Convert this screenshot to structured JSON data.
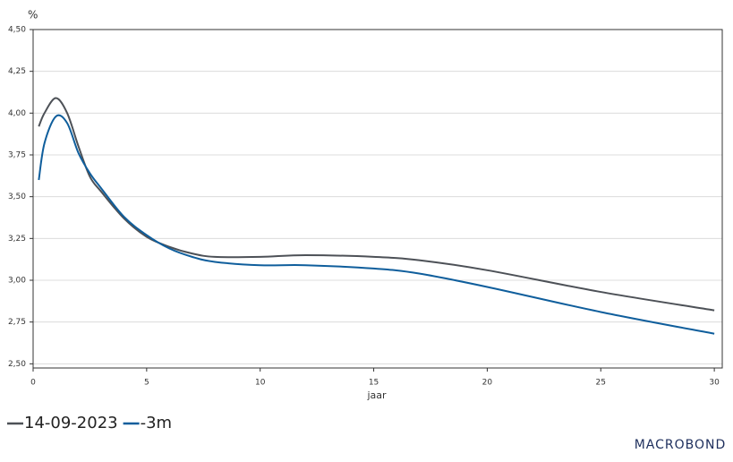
{
  "chart_data": {
    "type": "line",
    "y_unit": "%",
    "x_label": "jaar",
    "x": [
      0.25,
      0.5,
      1,
      1.5,
      2,
      2.5,
      3,
      4,
      5,
      6,
      7,
      8,
      10,
      12,
      15,
      17,
      20,
      25,
      30
    ],
    "series": [
      {
        "name": "14-09-2023",
        "color": "#4d5157",
        "values": [
          3.92,
          4.0,
          4.09,
          4.0,
          3.8,
          3.62,
          3.53,
          3.37,
          3.26,
          3.2,
          3.16,
          3.14,
          3.14,
          3.15,
          3.14,
          3.12,
          3.06,
          2.93,
          2.82
        ]
      },
      {
        "name": "-3m",
        "color": "#0f5e9c",
        "values": [
          3.6,
          3.82,
          3.98,
          3.94,
          3.76,
          3.64,
          3.55,
          3.38,
          3.27,
          3.19,
          3.14,
          3.11,
          3.09,
          3.09,
          3.07,
          3.04,
          2.96,
          2.81,
          2.68
        ]
      }
    ],
    "xlim": [
      0,
      30.35
    ],
    "xticks": [
      0,
      5,
      10,
      15,
      20,
      25,
      30
    ],
    "ylim": [
      2.475,
      4.5
    ],
    "yticks": [
      {
        "value": 2.5,
        "label": "2,50"
      },
      {
        "value": 2.75,
        "label": "2,75"
      },
      {
        "value": 3.0,
        "label": "3,00"
      },
      {
        "value": 3.25,
        "label": "3,25"
      },
      {
        "value": 3.5,
        "label": "3,50"
      },
      {
        "value": 3.75,
        "label": "3,75"
      },
      {
        "value": 4.0,
        "label": "4,00"
      },
      {
        "value": 4.25,
        "label": "4,25"
      },
      {
        "value": 4.5,
        "label": "4,50"
      }
    ],
    "grid": true,
    "legend": "bottom-left",
    "logo": "MACROBOND"
  }
}
